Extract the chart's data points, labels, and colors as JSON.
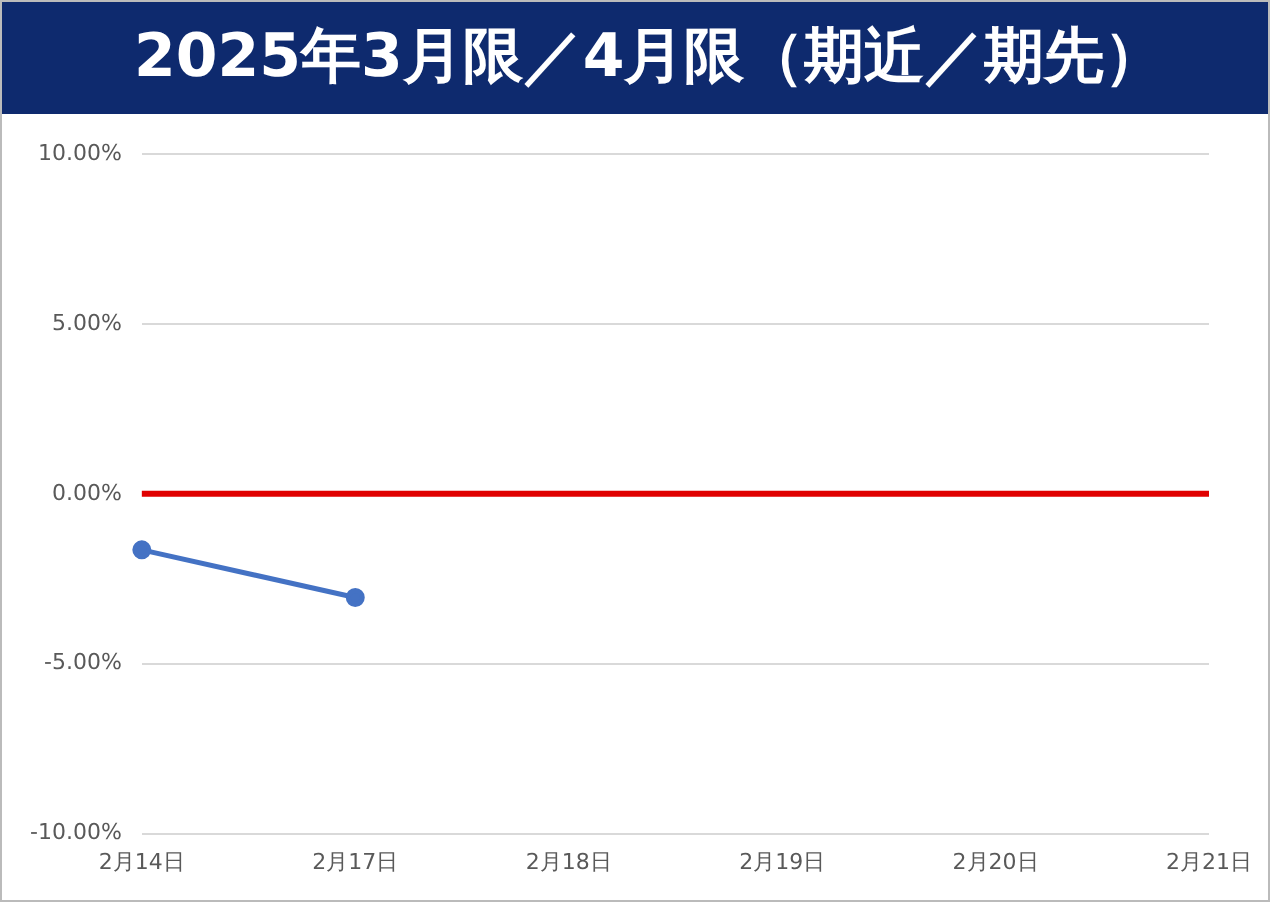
{
  "chart_data": {
    "type": "line",
    "title": "2025年3月限／4月限（期近／期先）",
    "categories": [
      "2月14日",
      "2月17日",
      "2月18日",
      "2月19日",
      "2月20日",
      "2月21日"
    ],
    "series": [
      {
        "color": "#4472c4",
        "values": [
          -1.65,
          -3.05,
          null,
          null,
          null,
          null
        ]
      }
    ],
    "ylim": [
      -10,
      10
    ],
    "yticks": [
      {
        "value": -10,
        "label": "-10.00%"
      },
      {
        "value": -5,
        "label": "-5.00%"
      },
      {
        "value": 0,
        "label": "0.00%"
      },
      {
        "value": 5,
        "label": "5.00%"
      },
      {
        "value": 10,
        "label": "10.00%"
      }
    ],
    "ref_lines": [
      {
        "axis": "y",
        "value": 0,
        "color": "#e00000"
      }
    ],
    "grid": "y",
    "legend": false,
    "marker": "circle",
    "line_style": "solid"
  }
}
